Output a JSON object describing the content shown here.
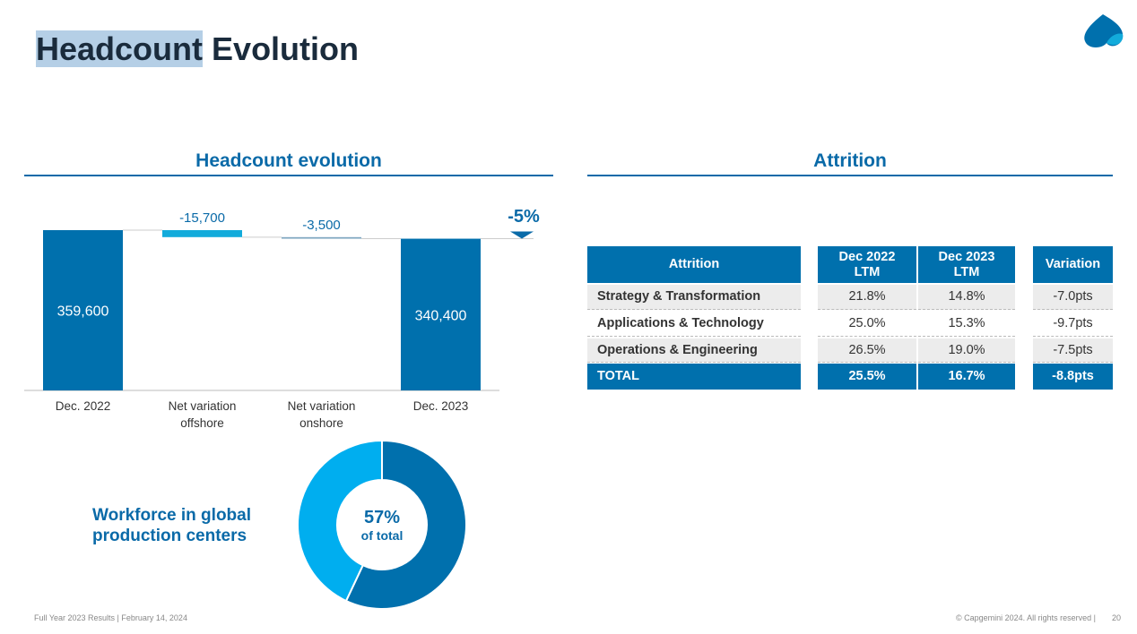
{
  "header": {
    "title_highlight": "Headcount",
    "title_rest": "Evolution"
  },
  "chart_data": [
    {
      "type": "waterfall",
      "title": "Headcount evolution",
      "categories": [
        "Dec. 2022",
        "Net variation offshore",
        "Net variation onshore",
        "Dec. 2023"
      ],
      "values": [
        359600,
        -15700,
        -3500,
        340400
      ],
      "value_labels": [
        "359,600",
        "-15,700",
        "-3,500",
        "340,400"
      ],
      "kinds": [
        "total",
        "delta",
        "delta",
        "total"
      ],
      "colors": [
        "#0070ad",
        "#12abdb",
        "#7fa6c0",
        "#0070ad"
      ],
      "annotation": "-5%"
    },
    {
      "type": "donut",
      "title": "Workforce in global production centers",
      "values": [
        57,
        43
      ],
      "value_labels": [
        "57%",
        null
      ],
      "center_note": "of total",
      "colors": [
        "#0070ad",
        "#00aeef"
      ]
    }
  ],
  "table": {
    "title": "Attrition",
    "columns": [
      "Attrition",
      "Dec 2022 LTM",
      "Dec 2023 LTM",
      "Variation"
    ],
    "rows": [
      [
        "Strategy & Transformation",
        "21.8%",
        "14.8%",
        "-7.0pts"
      ],
      [
        "Applications & Technology",
        "25.0%",
        "15.3%",
        "-9.7pts"
      ],
      [
        "Operations & Engineering",
        "26.5%",
        "19.0%",
        "-7.5pts"
      ],
      [
        "TOTAL",
        "25.5%",
        "16.7%",
        "-8.8pts"
      ]
    ]
  },
  "footer": {
    "left": "Full Year 2023 Results | February 14, 2024",
    "right": "© Capgemini 2024. All rights reserved |",
    "page": "20"
  }
}
